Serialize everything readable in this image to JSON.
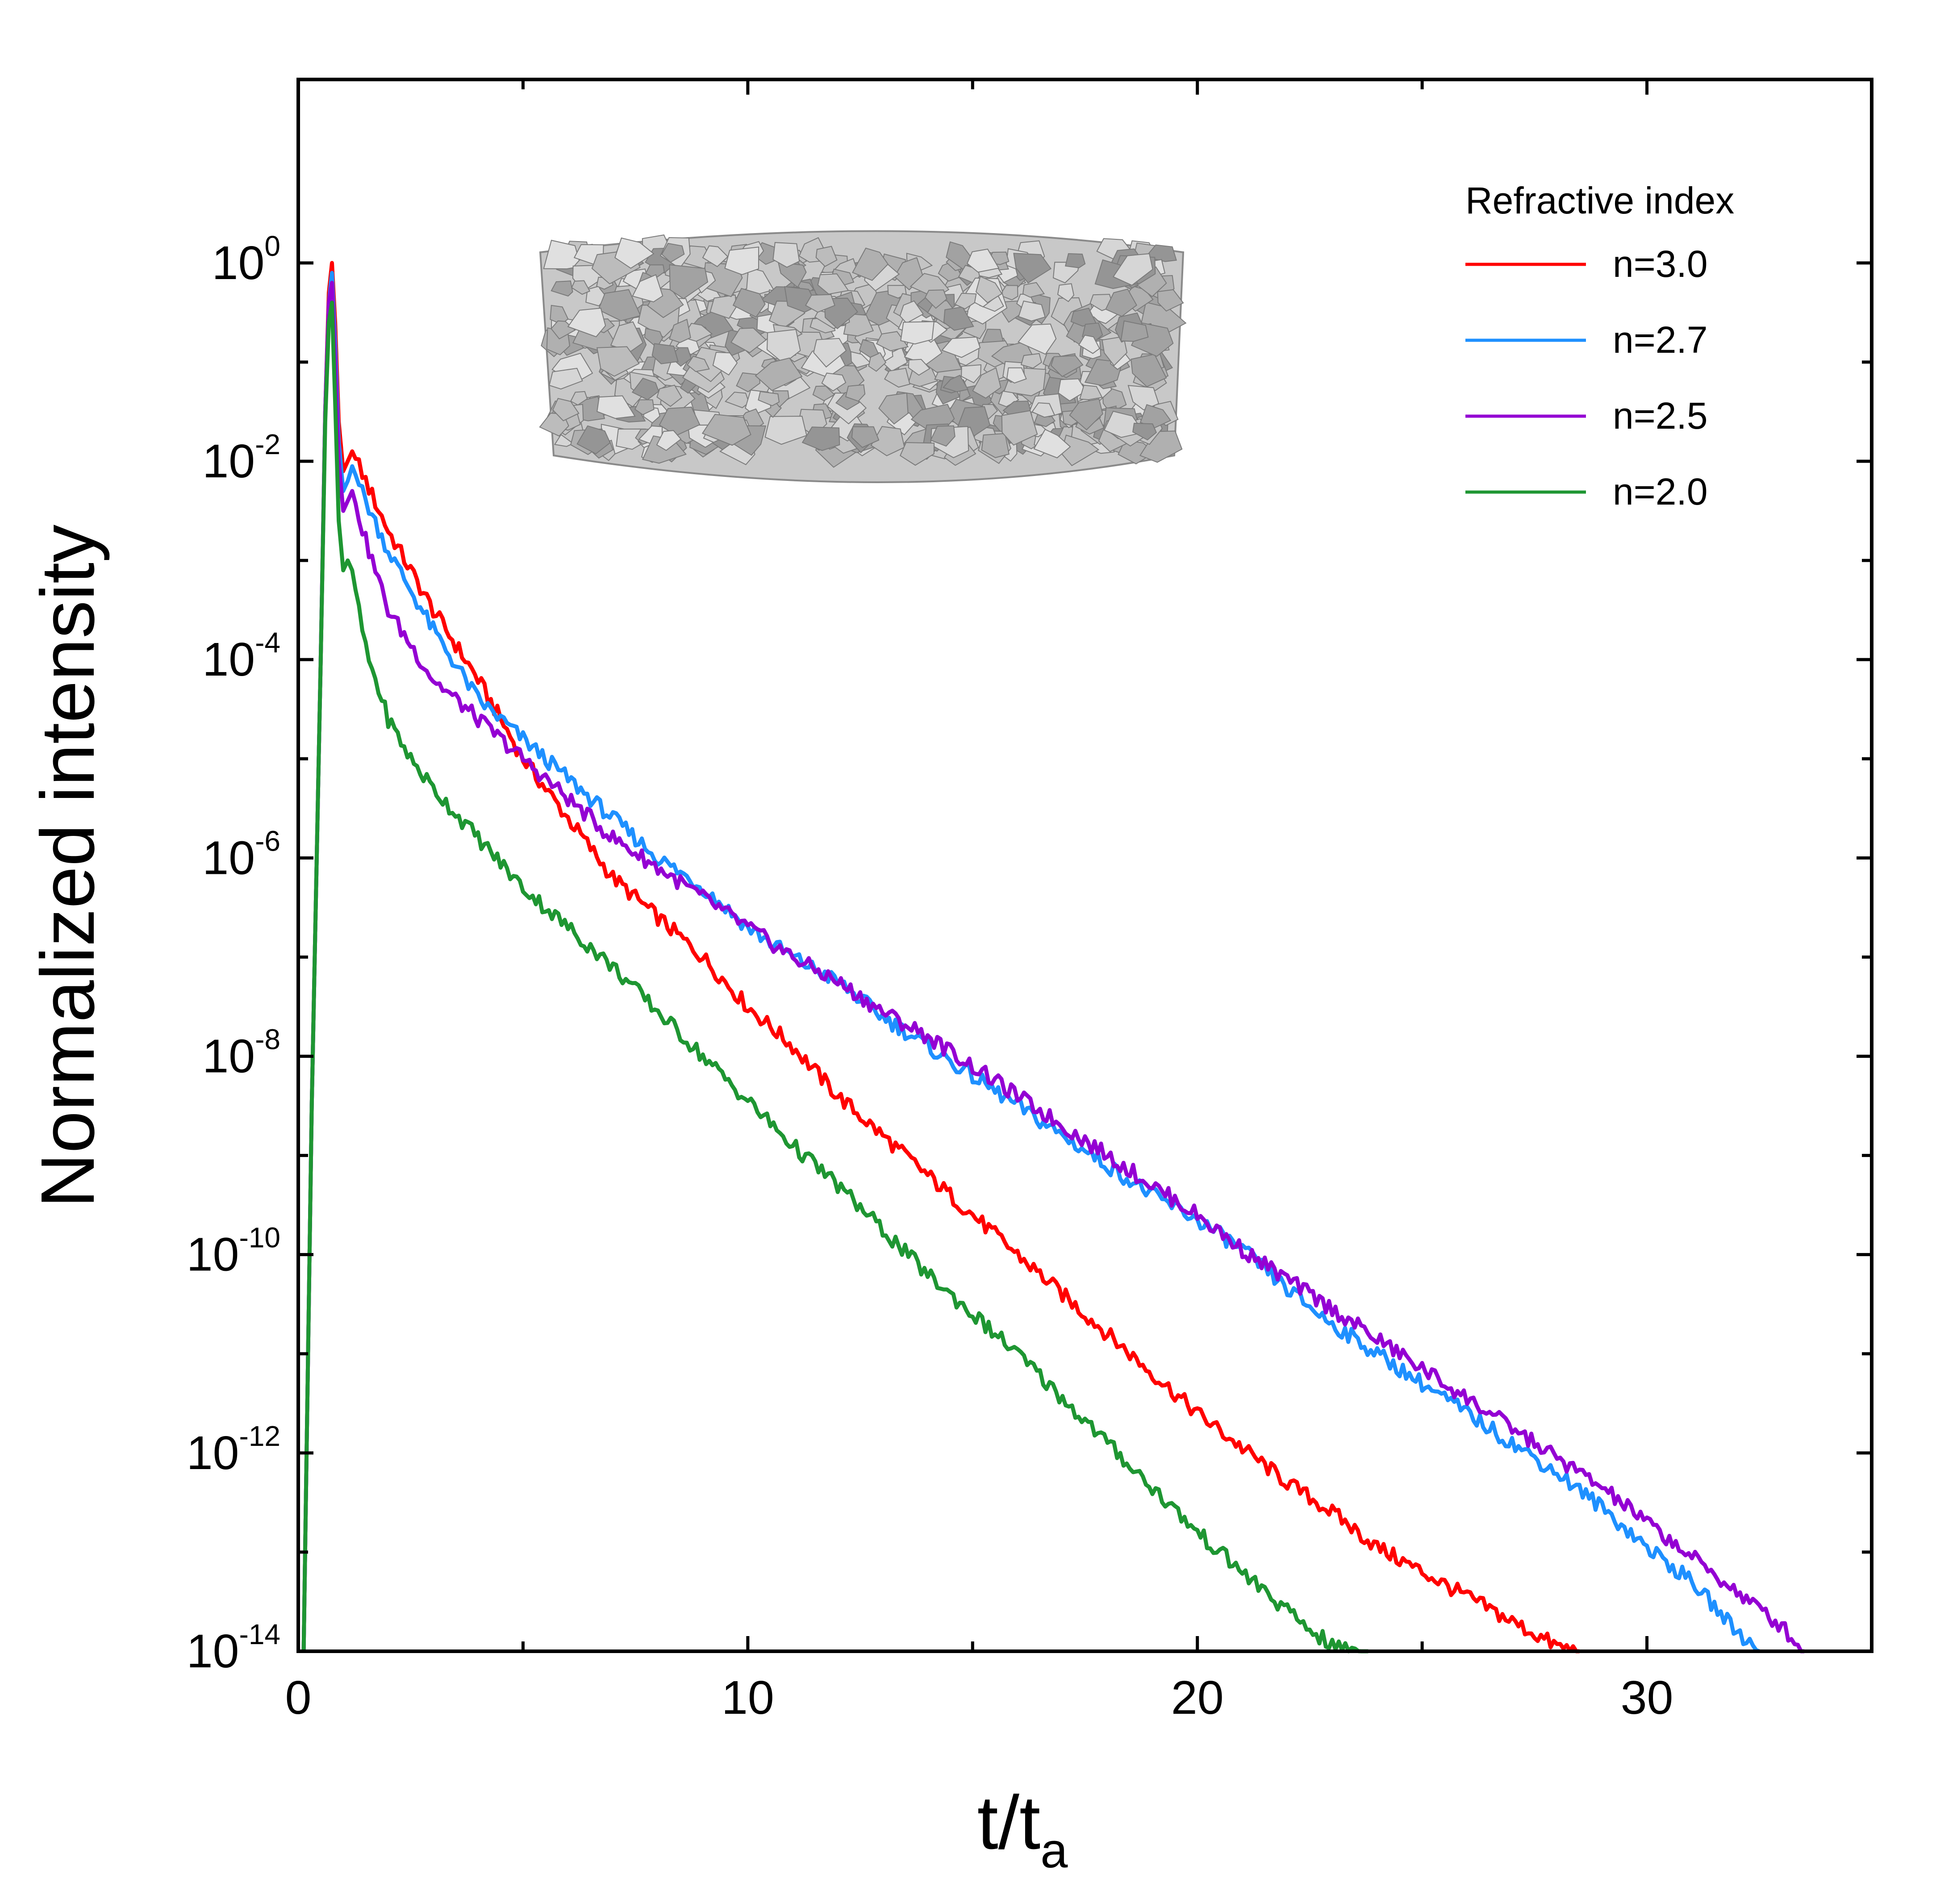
{
  "chart_data": {
    "type": "line",
    "title": "",
    "xlabel": "t/t",
    "xlabel_subscript": "a",
    "ylabel": "Normalized intensity",
    "xscale": "linear",
    "yscale": "log",
    "xlim": [
      0,
      35
    ],
    "ylim_exp": [
      -14,
      1.85
    ],
    "x_ticks": [
      0,
      10,
      20,
      30
    ],
    "x_tick_labels": [
      "0",
      "10",
      "20",
      "30"
    ],
    "x_minor_ticks": [
      5,
      15,
      25
    ],
    "y_tick_exps": [
      0,
      -2,
      -4,
      -6,
      -8,
      -10,
      -12,
      -14
    ],
    "y_tick_base": "10",
    "y_tick_exp_labels": [
      "0",
      "-2",
      "-4",
      "-6",
      "-8",
      "-10",
      "-12",
      "-14"
    ],
    "y_minor_tick_exps": [
      -1,
      -3,
      -5,
      -7,
      -9,
      -11,
      -13
    ],
    "legend": {
      "title": "Refractive index",
      "position": "top-right"
    },
    "inset": {
      "description": "3D rendering of a disordered disk-shaped aggregate of particles"
    },
    "series": [
      {
        "name": "n=3.0",
        "color": "#ff0000",
        "x": [
          0.12,
          0.3,
          0.5,
          0.6,
          0.68,
          0.75,
          0.82,
          0.9,
          1.0,
          1.1,
          1.2,
          1.5,
          2,
          3,
          4,
          5,
          6,
          7,
          8,
          9,
          10,
          11,
          12,
          13,
          14,
          15,
          16,
          17,
          18,
          19,
          20,
          21,
          22,
          23,
          24,
          25,
          26,
          27,
          28,
          28.5
        ],
        "log10_y": [
          -14,
          -8.5,
          -4,
          -1.5,
          -0.3,
          0.0,
          -0.6,
          -1.6,
          -2.1,
          -2.0,
          -1.9,
          -2.2,
          -2.7,
          -3.5,
          -4.2,
          -5.0,
          -5.6,
          -6.2,
          -6.6,
          -7.0,
          -7.5,
          -7.9,
          -8.4,
          -8.8,
          -9.2,
          -9.6,
          -10.0,
          -10.4,
          -10.8,
          -11.2,
          -11.6,
          -11.95,
          -12.3,
          -12.6,
          -12.95,
          -13.2,
          -13.45,
          -13.7,
          -13.95,
          -14.0
        ]
      },
      {
        "name": "n=2.7",
        "color": "#1e90ff",
        "x": [
          0.12,
          0.3,
          0.5,
          0.6,
          0.68,
          0.75,
          0.82,
          0.9,
          1.0,
          1.1,
          1.2,
          1.5,
          2,
          3,
          4,
          5,
          6,
          7,
          8,
          9,
          10,
          11,
          12,
          13,
          14,
          15,
          16,
          17,
          18,
          19,
          20,
          21,
          22,
          23,
          24,
          25,
          26,
          27,
          28,
          29,
          30,
          31,
          32,
          32.5
        ],
        "log10_y": [
          -14,
          -8.5,
          -4,
          -1.5,
          -0.4,
          -0.1,
          -0.8,
          -1.8,
          -2.3,
          -2.2,
          -2.05,
          -2.4,
          -2.9,
          -3.7,
          -4.4,
          -4.8,
          -5.2,
          -5.6,
          -6.0,
          -6.3,
          -6.7,
          -7.0,
          -7.25,
          -7.6,
          -7.9,
          -8.2,
          -8.5,
          -8.8,
          -9.1,
          -9.4,
          -9.65,
          -9.95,
          -10.35,
          -10.7,
          -11.0,
          -11.3,
          -11.6,
          -11.9,
          -12.2,
          -12.55,
          -12.95,
          -13.3,
          -13.8,
          -14.0
        ]
      },
      {
        "name": "n=2.5",
        "color": "#9400d3",
        "x": [
          0.12,
          0.3,
          0.5,
          0.6,
          0.68,
          0.75,
          0.82,
          0.9,
          1.0,
          1.1,
          1.2,
          1.5,
          2,
          3,
          4,
          5,
          6,
          7,
          8,
          9,
          10,
          11,
          12,
          13,
          14,
          15,
          16,
          17,
          18,
          19,
          20,
          21,
          22,
          23,
          24,
          25,
          26,
          27,
          28,
          29,
          30,
          31,
          32,
          33,
          33.5
        ],
        "log10_y": [
          -14,
          -8.5,
          -4,
          -1.5,
          -0.4,
          -0.2,
          -1.0,
          -2.0,
          -2.5,
          -2.4,
          -2.3,
          -2.8,
          -3.5,
          -4.2,
          -4.6,
          -5.0,
          -5.4,
          -5.8,
          -6.1,
          -6.4,
          -6.7,
          -7.0,
          -7.25,
          -7.55,
          -7.8,
          -8.1,
          -8.4,
          -8.7,
          -9.0,
          -9.3,
          -9.6,
          -9.95,
          -10.25,
          -10.55,
          -10.85,
          -11.15,
          -11.45,
          -11.75,
          -12.05,
          -12.35,
          -12.7,
          -13.05,
          -13.4,
          -13.75,
          -14.0
        ]
      },
      {
        "name": "n=2.0",
        "color": "#1e9632",
        "x": [
          0.12,
          0.3,
          0.5,
          0.6,
          0.68,
          0.75,
          0.82,
          0.9,
          1.0,
          1.1,
          1.2,
          1.5,
          2,
          2.5,
          3,
          4,
          5,
          6,
          7,
          8,
          9,
          10,
          11,
          12,
          13,
          14,
          15,
          16,
          17,
          18,
          19,
          20,
          21,
          22,
          23,
          23.8
        ],
        "log10_y": [
          -14,
          -8.5,
          -4,
          -1.6,
          -0.6,
          -0.4,
          -1.4,
          -2.6,
          -3.1,
          -3.0,
          -3.1,
          -3.9,
          -4.6,
          -5.0,
          -5.3,
          -5.8,
          -6.3,
          -6.7,
          -7.1,
          -7.55,
          -8.0,
          -8.45,
          -8.9,
          -9.3,
          -9.75,
          -10.2,
          -10.6,
          -11.0,
          -11.45,
          -11.9,
          -12.35,
          -12.8,
          -13.2,
          -13.6,
          -13.95,
          -14.0
        ]
      }
    ]
  }
}
